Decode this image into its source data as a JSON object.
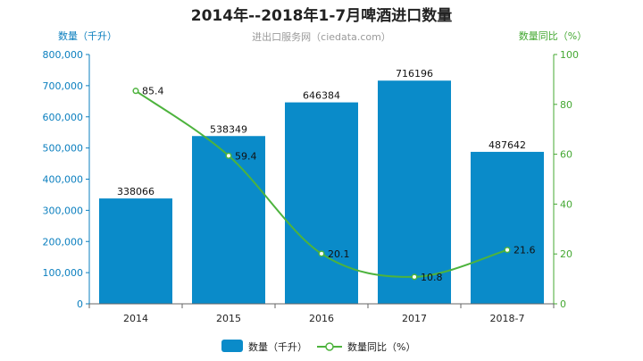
{
  "chart_data": {
    "type": "bar",
    "title": "2014年--2018年1-7月啤酒进口数量",
    "subtitle": "进出口服务网（ciedata.com）",
    "categories": [
      "2014",
      "2015",
      "2016",
      "2017",
      "2018-7"
    ],
    "series": [
      {
        "name": "数量（千升）",
        "type": "bar",
        "axis": "left",
        "values": [
          338066,
          538349,
          646384,
          716196,
          487642
        ],
        "value_labels": [
          "338066",
          "538349",
          "646384",
          "716196",
          "487642"
        ]
      },
      {
        "name": "数量同比（%）",
        "type": "line",
        "axis": "right",
        "values": [
          85.4,
          59.4,
          20.1,
          10.8,
          21.6
        ],
        "value_labels": [
          "85.4",
          "59.4",
          "20.1",
          "10.8",
          "21.6"
        ]
      }
    ],
    "y_left": {
      "label": "数量（千升）",
      "range": [
        0,
        800000
      ],
      "ticks": [
        "0",
        "100,000",
        "200,000",
        "300,000",
        "400,000",
        "500,000",
        "600,000",
        "700,000",
        "800,000"
      ]
    },
    "y_right": {
      "label": "数量同比（%）",
      "range": [
        0,
        100
      ],
      "ticks": [
        "0",
        "20",
        "40",
        "60",
        "80",
        "100"
      ]
    },
    "grid": false,
    "legend_position": "bottom-center",
    "colors": {
      "bar": "#0a8bc9",
      "line": "#4db33d",
      "left_axis": "#0b7fbf",
      "right_axis": "#44a832"
    }
  }
}
